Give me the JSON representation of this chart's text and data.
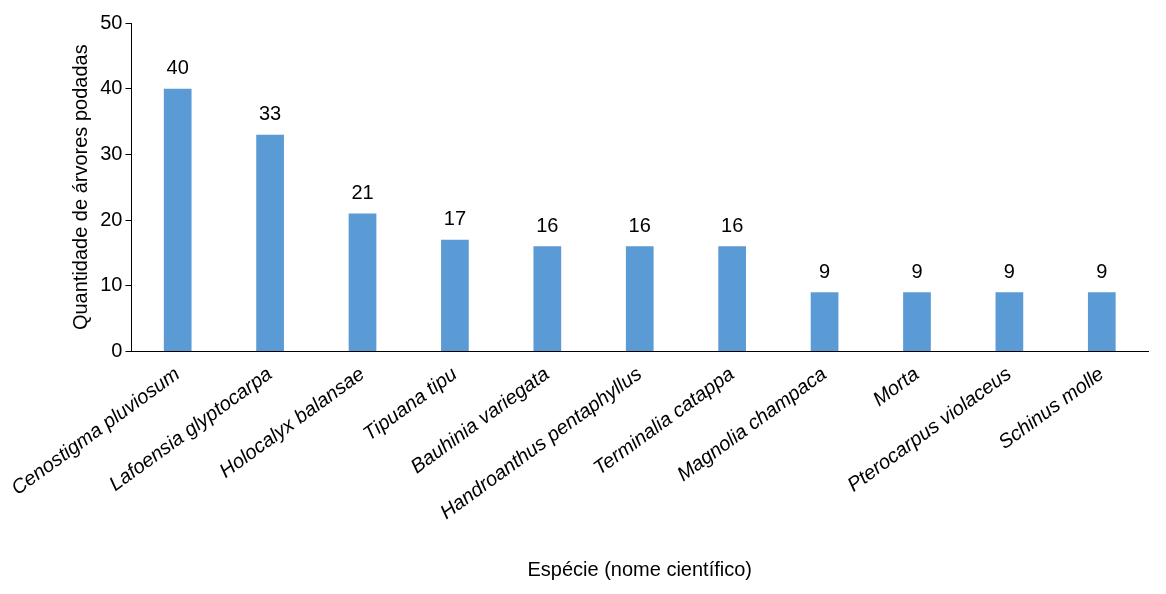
{
  "chart_data": {
    "type": "bar",
    "xlabel": "Espécie (nome científico)",
    "ylabel": "Quantidade de árvores podadas",
    "categories": [
      "Cenostigma pluviosum",
      "Lafoensia glyptocarpa",
      "Holocalyx balansae",
      "Tipuana tipu",
      "Bauhinia variegata",
      "Handroanthus pentaphyllus",
      "Terminalia catappa",
      "Magnolia champaca",
      "Morta",
      "Pterocarpus violaceus",
      "Schinus molle"
    ],
    "values": [
      40,
      33,
      21,
      17,
      16,
      16,
      16,
      9,
      9,
      9,
      9
    ],
    "color": "#5b9bd5",
    "ylim": [
      0,
      50
    ],
    "yticks": [
      0,
      10,
      20,
      30,
      40,
      50
    ],
    "grid": false,
    "legend": false,
    "data_labels": true
  }
}
